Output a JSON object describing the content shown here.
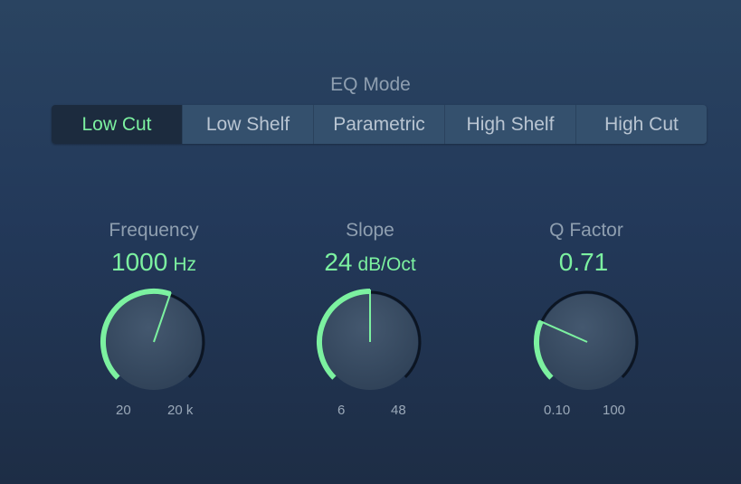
{
  "eq_mode": {
    "title": "EQ Mode",
    "options": [
      "Low Cut",
      "Low Shelf",
      "Parametric",
      "High Shelf",
      "High Cut"
    ],
    "selected": "Low Cut"
  },
  "params": [
    {
      "label": "Frequency",
      "value": "1000",
      "unit": "Hz",
      "min": "20",
      "max": "20 k",
      "level": 0.57
    },
    {
      "label": "Slope",
      "value": "24",
      "unit": "dB/Oct",
      "min": "6",
      "max": "48",
      "level": 0.5
    },
    {
      "label": "Q Factor",
      "value": "0.71",
      "unit": "",
      "min": "0.10",
      "max": "100",
      "level": 0.255
    }
  ],
  "colors": {
    "accent": "#7cf1a0",
    "background": "#23395a",
    "knob": "#3a4d63"
  }
}
